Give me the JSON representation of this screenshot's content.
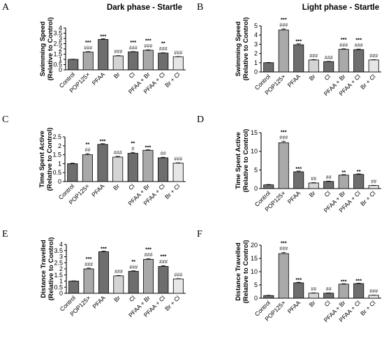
{
  "chart_data": [
    {
      "panel": "A",
      "type": "bar",
      "title": "Dark phase - Startle",
      "ylabel": [
        "Swimming Speed",
        "(Relative to Control)"
      ],
      "ylim": [
        0,
        4
      ],
      "yticks": [
        0,
        0.5,
        1,
        1.5,
        2,
        2.5,
        3,
        3.5,
        4
      ],
      "categories": [
        "Control",
        "POP125×",
        "PFAA",
        "Br",
        "Cl",
        "PFAA + Br",
        "PFAA + Cl",
        "Br + Cl"
      ],
      "values": [
        1.0,
        1.7,
        2.9,
        1.33,
        1.72,
        1.87,
        1.6,
        1.25
      ],
      "errors": [
        0.02,
        0.04,
        0.06,
        0.03,
        0.03,
        0.04,
        0.03,
        0.02
      ],
      "stars": [
        "",
        "***",
        "***",
        "",
        "***",
        "***",
        "**",
        ""
      ],
      "hashes": [
        "",
        "###",
        "",
        "###",
        "###",
        "###",
        "###",
        "###"
      ]
    },
    {
      "panel": "B",
      "type": "bar",
      "title": "Light phase - Startle",
      "ylabel": [
        "Swimming Speed",
        "(Relative to Control)"
      ],
      "ylim": [
        0,
        5
      ],
      "yticks": [
        0,
        1,
        2,
        3,
        4,
        5
      ],
      "categories": [
        "Control",
        "POP125×",
        "PFAA",
        "Br",
        "Cl",
        "PFAA + Br",
        "PFAA + Cl",
        "Br + Cl"
      ],
      "values": [
        1.0,
        4.55,
        2.95,
        1.3,
        1.12,
        2.45,
        2.42,
        1.3
      ],
      "errors": [
        0.03,
        0.12,
        0.1,
        0.04,
        0.03,
        0.06,
        0.06,
        0.03
      ],
      "stars": [
        "",
        "***",
        "***",
        "",
        "",
        "***",
        "***",
        ""
      ],
      "hashes": [
        "",
        "###",
        "",
        "###",
        "###",
        "###",
        "###",
        "###"
      ]
    },
    {
      "panel": "C",
      "type": "bar",
      "title": "",
      "ylabel": [
        "Time Spent Active",
        "(Relative to Control)"
      ],
      "ylim": [
        0,
        2.5
      ],
      "yticks": [
        0,
        0.5,
        1,
        1.5,
        2,
        2.5
      ],
      "categories": [
        "Control",
        "POP125×",
        "PFAA",
        "Br",
        "Cl",
        "PFAA + Br",
        "PFAA + Cl",
        "Br + Cl"
      ],
      "values": [
        1.0,
        1.5,
        2.08,
        1.37,
        1.58,
        1.75,
        1.33,
        1.03
      ],
      "errors": [
        0.03,
        0.06,
        0.04,
        0.04,
        0.05,
        0.03,
        0.03,
        0.02
      ],
      "stars": [
        "",
        "**",
        "***",
        "",
        "**",
        "***",
        "",
        ""
      ],
      "hashes": [
        "",
        "##",
        "",
        "###",
        "#",
        "",
        "##",
        "###"
      ]
    },
    {
      "panel": "D",
      "type": "bar",
      "title": "",
      "ylabel": [
        "Time Spent Active",
        "(Relative to Control)"
      ],
      "ylim": [
        0,
        15
      ],
      "yticks": [
        0,
        5,
        10,
        15
      ],
      "categories": [
        "Control",
        "POP125×",
        "PFAA",
        "Br",
        "Cl",
        "PFAA + Br",
        "PFAA + Cl",
        "Br + Cl"
      ],
      "values": [
        1.0,
        12.3,
        4.5,
        1.5,
        1.9,
        3.6,
        3.8,
        0.8
      ],
      "errors": [
        0.1,
        0.4,
        0.2,
        0.1,
        0.1,
        0.15,
        0.15,
        0.05
      ],
      "stars": [
        "",
        "***",
        "***",
        "",
        "",
        "**",
        "**",
        ""
      ],
      "hashes": [
        "",
        "###",
        "",
        "##",
        "##",
        "",
        "",
        "##"
      ]
    },
    {
      "panel": "E",
      "type": "bar",
      "title": "",
      "ylabel": [
        "Distance Travelled",
        "(Relative to Control)"
      ],
      "ylim": [
        0,
        4
      ],
      "yticks": [
        0,
        0.5,
        1,
        1.5,
        2,
        2.5,
        3,
        3.5,
        4
      ],
      "categories": [
        "Control",
        "POP125×",
        "PFAA",
        "Br",
        "Cl",
        "PFAA + Br",
        "PFAA + Cl",
        "Br + Cl"
      ],
      "values": [
        1.0,
        2.0,
        3.4,
        1.43,
        1.8,
        2.78,
        2.2,
        1.18
      ],
      "errors": [
        0.02,
        0.06,
        0.06,
        0.03,
        0.04,
        0.04,
        0.05,
        0.02
      ],
      "stars": [
        "",
        "***",
        "***",
        "",
        "**",
        "***",
        "***",
        ""
      ],
      "hashes": [
        "",
        "###",
        "",
        "###",
        "###",
        "###",
        "###",
        "###"
      ]
    },
    {
      "panel": "F",
      "type": "bar",
      "title": "",
      "ylabel": [
        "Distance Travelled",
        "(Relative to Control)"
      ],
      "ylim": [
        0,
        20
      ],
      "yticks": [
        0,
        5,
        10,
        15,
        20
      ],
      "categories": [
        "Control",
        "POP125×",
        "PFAA",
        "Br",
        "Cl",
        "PFAA + Br",
        "PFAA + Cl",
        "Br + Cl"
      ],
      "values": [
        1.0,
        16.8,
        5.8,
        1.9,
        1.9,
        5.3,
        5.5,
        1.1
      ],
      "errors": [
        0.1,
        0.4,
        0.2,
        0.1,
        0.1,
        0.15,
        0.15,
        0.05
      ],
      "stars": [
        "",
        "***",
        "***",
        "",
        "",
        "***",
        "***",
        ""
      ],
      "hashes": [
        "",
        "###",
        "",
        "##",
        "##",
        "",
        "",
        "###"
      ]
    }
  ],
  "bar_colors": [
    "#6e6e6e",
    "#a9a9a9",
    "#6e6e6e",
    "#d4d4d4",
    "#6e6e6e",
    "#a9a9a9",
    "#6e6e6e",
    "#e6e6e6"
  ]
}
